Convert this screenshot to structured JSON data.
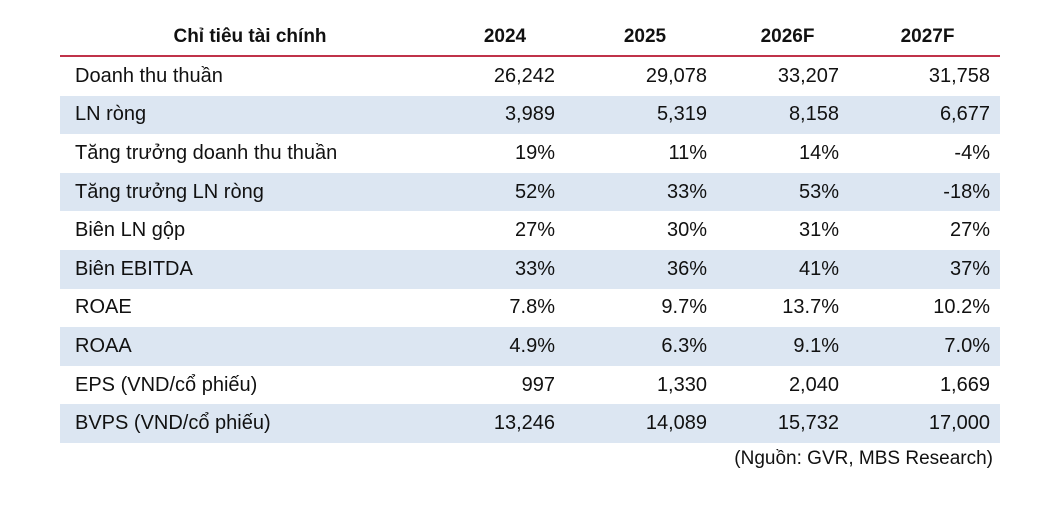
{
  "table": {
    "header": [
      "Chỉ tiêu tài chính",
      "2024",
      "2025",
      "2026F",
      "2027F"
    ],
    "rows": [
      [
        "Doanh thu thuần",
        "26,242",
        "29,078",
        "33,207",
        "31,758"
      ],
      [
        "LN ròng",
        "3,989",
        "5,319",
        "8,158",
        "6,677"
      ],
      [
        "Tăng trưởng doanh thu thuần",
        "19%",
        "11%",
        "14%",
        "-4%"
      ],
      [
        "Tăng trưởng LN ròng",
        "52%",
        "33%",
        "53%",
        "-18%"
      ],
      [
        "Biên LN gộp",
        "27%",
        "30%",
        "31%",
        "27%"
      ],
      [
        "Biên EBITDA",
        "33%",
        "36%",
        "41%",
        "37%"
      ],
      [
        "ROAE",
        "7.8%",
        "9.7%",
        "13.7%",
        "10.2%"
      ],
      [
        "ROAA",
        "4.9%",
        "6.3%",
        "9.1%",
        "7.0%"
      ],
      [
        "EPS (VND/cổ phiếu)",
        "997",
        "1,330",
        "2,040",
        "1,669"
      ],
      [
        "BVPS (VND/cổ phiếu)",
        "13,246",
        "14,089",
        "15,732",
        "17,000"
      ]
    ]
  },
  "source": "(Nguồn: GVR, MBS Research)"
}
